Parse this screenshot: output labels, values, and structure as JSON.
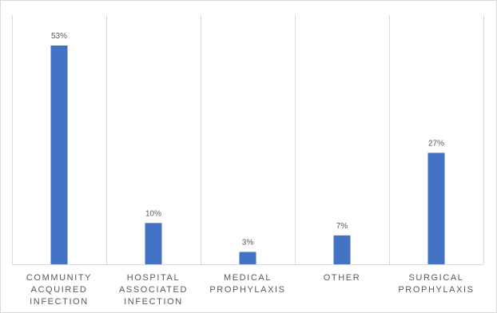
{
  "chart_data": {
    "type": "bar",
    "categories": [
      [
        "COMMUNITY",
        "ACQUIRED",
        "INFECTION"
      ],
      [
        "HOSPITAL",
        "ASSOCIATED",
        "INFECTION"
      ],
      [
        "MEDICAL",
        "PROPHYLAXIS"
      ],
      [
        "OTHER"
      ],
      [
        "SURGICAL",
        "PROPHYLAXIS"
      ]
    ],
    "values": [
      53,
      10,
      3,
      7,
      27
    ],
    "data_labels": [
      "53%",
      "10%",
      "3%",
      "7%",
      "27%"
    ],
    "ylim": [
      0,
      53
    ],
    "grid": "vertical category separators",
    "legend": "none",
    "bar_color": "#4472c4",
    "separator_color": "#d9d9d9"
  }
}
